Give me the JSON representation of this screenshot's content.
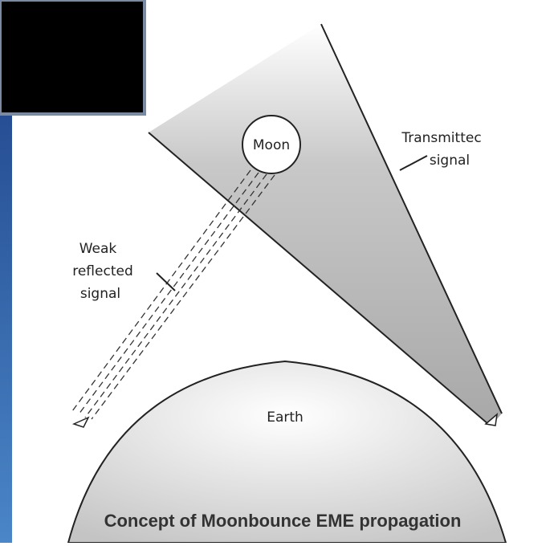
{
  "labels": {
    "moon": "Moon",
    "transmitted": [
      "Transmittec",
      "signal"
    ],
    "reflected": [
      "Weak",
      "reflected",
      "signal"
    ],
    "earth": "Earth"
  },
  "caption": "Concept of Moonbounce EME propagation"
}
